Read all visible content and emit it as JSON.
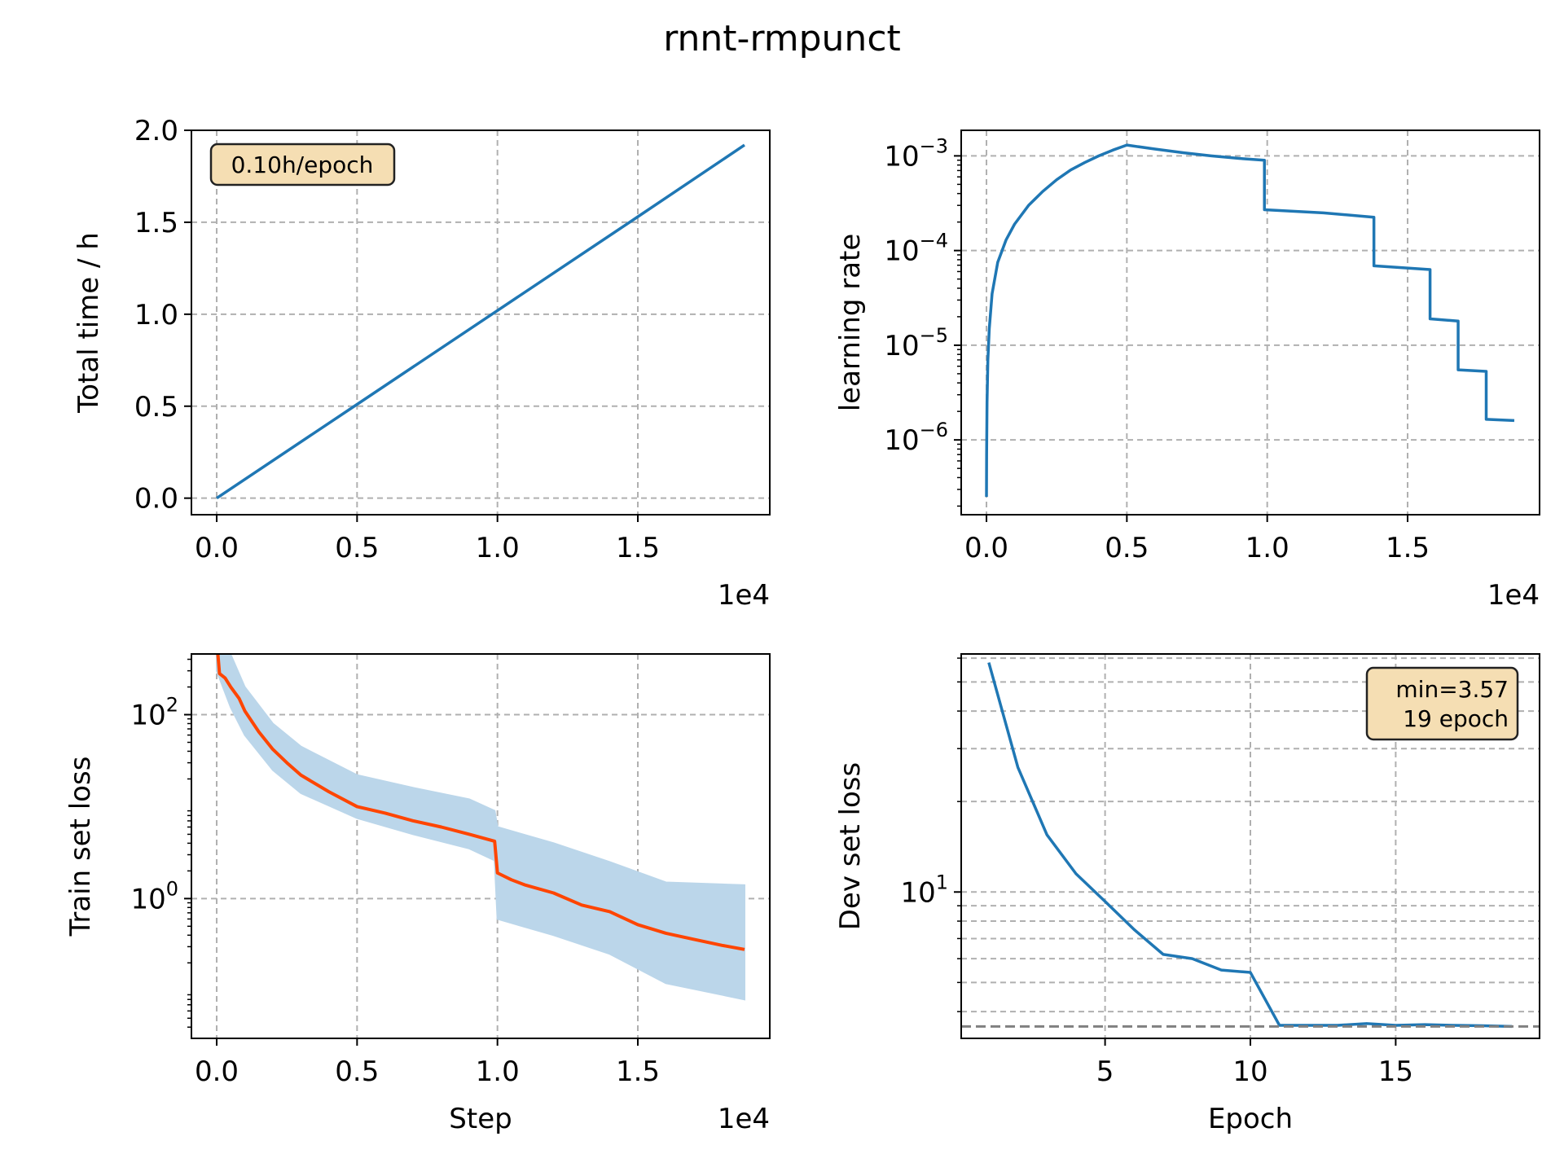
{
  "figure": {
    "title": "rnnt-rmpunct"
  },
  "colors": {
    "line": "#1f77b4",
    "smooth": "#ff4500",
    "raw": "#bbd6ea",
    "grid": "#b0b0b0",
    "box_fill": "#f5deb3",
    "min_line": "#808080"
  },
  "chart_data": [
    {
      "id": "total-time",
      "type": "line",
      "xlabel": "",
      "ylabel": "Total time / h",
      "x_offset_text": "1e4",
      "xlim": [
        -0.09,
        1.97
      ],
      "ylim": [
        -0.09,
        2.0
      ],
      "xticks": [
        0.0,
        0.5,
        1.0,
        1.5
      ],
      "xtick_labels": [
        "0.0",
        "0.5",
        "1.0",
        "1.5"
      ],
      "yticks": [
        0.0,
        0.5,
        1.0,
        1.5,
        2.0
      ],
      "ytick_labels": [
        "0.0",
        "0.5",
        "1.0",
        "1.5",
        "2.0"
      ],
      "annotation": "0.10h/epoch",
      "series": [
        {
          "x": [
            0.0,
            0.5,
            1.0,
            1.5,
            1.88
          ],
          "y": [
            0.0,
            0.51,
            1.02,
            1.53,
            1.92
          ]
        }
      ]
    },
    {
      "id": "learning-rate",
      "type": "line",
      "xlabel": "",
      "ylabel": "learning rate",
      "y_scale": "log",
      "x_offset_text": "1e4",
      "xlim": [
        -0.09,
        1.97
      ],
      "ylim": [
        -6.79,
        -2.73
      ],
      "xticks": [
        0.0,
        0.5,
        1.0,
        1.5
      ],
      "xtick_labels": [
        "0.0",
        "0.5",
        "1.0",
        "1.5"
      ],
      "yticks": [
        -3,
        -4,
        -5,
        -6
      ],
      "ytick_labels": [
        {
          "base": "10",
          "exp": "−3"
        },
        {
          "base": "10",
          "exp": "−4"
        },
        {
          "base": "10",
          "exp": "−5"
        },
        {
          "base": "10",
          "exp": "−6"
        }
      ],
      "series": [
        {
          "x": [
            0.0,
            0.0005,
            0.002,
            0.005,
            0.01,
            0.02,
            0.04,
            0.07,
            0.1,
            0.15,
            0.2,
            0.25,
            0.3,
            0.35,
            0.4,
            0.45,
            0.5,
            0.6,
            0.7,
            0.8,
            0.9,
            0.99,
            0.99,
            1.2,
            1.38,
            1.38,
            1.58,
            1.58,
            1.68,
            1.68,
            1.78,
            1.78,
            1.88
          ],
          "y": [
            2.5e-07,
            7e-07,
            2.5e-06,
            7e-06,
            1.5e-05,
            3.5e-05,
            7.5e-05,
            0.00013,
            0.00019,
            0.0003,
            0.00042,
            0.00056,
            0.00071,
            0.00085,
            0.001,
            0.00115,
            0.0013,
            0.00118,
            0.00108,
            0.001,
            0.00094,
            0.0009,
            0.00027,
            0.00025,
            0.000225,
            6.9e-05,
            6.3e-05,
            1.9e-05,
            1.8e-05,
            5.5e-06,
            5.3e-06,
            1.65e-06,
            1.6e-06
          ]
        }
      ]
    },
    {
      "id": "train-loss",
      "type": "line",
      "xlabel": "Step",
      "ylabel": "Train set loss",
      "y_scale": "log",
      "x_offset_text": "1e4",
      "xlim": [
        -0.09,
        1.97
      ],
      "ylim": [
        -1.52,
        2.66
      ],
      "xticks": [
        0.0,
        0.5,
        1.0,
        1.5
      ],
      "xtick_labels": [
        "0.0",
        "0.5",
        "1.0",
        "1.5"
      ],
      "yticks": [
        2,
        0
      ],
      "ytick_labels": [
        {
          "base": "10",
          "exp": "2"
        },
        {
          "base": "10",
          "exp": "0"
        }
      ],
      "series": [
        {
          "name": "",
          "style": "smoothed",
          "x": [
            0.0,
            0.01,
            0.03,
            0.05,
            0.08,
            0.1,
            0.15,
            0.2,
            0.25,
            0.3,
            0.4,
            0.5,
            0.6,
            0.7,
            0.8,
            0.9,
            0.99,
            1.0,
            1.05,
            1.1,
            1.2,
            1.3,
            1.4,
            1.5,
            1.6,
            1.7,
            1.8,
            1.88
          ],
          "y": [
            650,
            280,
            250,
            200,
            150,
            110,
            65,
            42,
            30,
            22,
            14.5,
            10,
            8.5,
            7,
            6,
            5,
            4.2,
            1.9,
            1.6,
            1.4,
            1.15,
            0.85,
            0.72,
            0.52,
            0.42,
            0.36,
            0.31,
            0.28
          ]
        }
      ],
      "raw_band": {
        "x": [
          0.0,
          0.05,
          0.1,
          0.2,
          0.3,
          0.5,
          0.7,
          0.9,
          0.99,
          1.0,
          1.2,
          1.4,
          1.6,
          1.88
        ],
        "upper": [
          1000,
          450,
          200,
          80,
          45,
          22,
          16,
          12,
          9,
          6,
          4,
          2.5,
          1.5,
          1.4
        ],
        "lower": [
          300,
          120,
          60,
          25,
          14,
          7.5,
          5,
          3.5,
          2.6,
          0.6,
          0.4,
          0.25,
          0.12,
          0.08
        ]
      }
    },
    {
      "id": "dev-loss",
      "type": "line",
      "xlabel": "Epoch",
      "ylabel": "Dev set loss",
      "y_scale": "log",
      "xlim": [
        0.05,
        19.95
      ],
      "ylim": [
        0.513,
        1.792
      ],
      "xticks": [
        5,
        10,
        15
      ],
      "xtick_labels": [
        "5",
        "10",
        "15"
      ],
      "yticks": [
        1
      ],
      "ytick_labels": [
        {
          "base": "10",
          "exp": "1"
        }
      ],
      "annotation_lines": [
        "min=3.57",
        "19 epoch"
      ],
      "min_value": 3.57,
      "series": [
        {
          "x": [
            1,
            2,
            3,
            4,
            5,
            6,
            7,
            8,
            9,
            10,
            11,
            12,
            13,
            14,
            15,
            16,
            17,
            18,
            19
          ],
          "y": [
            58,
            26,
            15.5,
            11.5,
            9.3,
            7.5,
            6.2,
            6.0,
            5.5,
            5.4,
            3.6,
            3.6,
            3.6,
            3.65,
            3.6,
            3.62,
            3.6,
            3.59,
            3.57
          ]
        }
      ]
    }
  ]
}
